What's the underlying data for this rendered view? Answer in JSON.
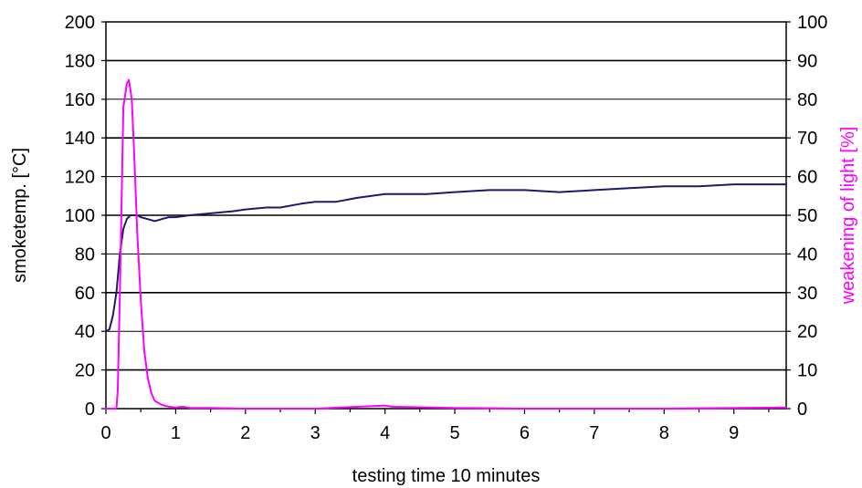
{
  "chart_data": {
    "type": "line",
    "xlabel": "testing time 10 minutes",
    "ylabel": "smoketemp. [°C]",
    "y2label": "weakening of light [%]",
    "xlim": [
      0,
      9.75
    ],
    "ylim": [
      0,
      200
    ],
    "y2lim": [
      0,
      100
    ],
    "x_ticks": [
      "0",
      "1",
      "2",
      "3",
      "4",
      "5",
      "6",
      "7",
      "8",
      "9"
    ],
    "y_ticks": [
      "0",
      "20",
      "40",
      "60",
      "80",
      "100",
      "120",
      "140",
      "160",
      "180",
      "200"
    ],
    "y2_ticks": [
      "0",
      "10",
      "20",
      "30",
      "40",
      "50",
      "60",
      "70",
      "80",
      "90",
      "100"
    ],
    "grid": true,
    "colors": {
      "smoke_temperature": "#1a1a6e",
      "light_weakening": "#ff00ff"
    },
    "series": [
      {
        "axis": "left",
        "x": [
          0,
          0.05,
          0.1,
          0.15,
          0.2,
          0.25,
          0.3,
          0.35,
          0.4,
          0.45,
          0.5,
          0.6,
          0.7,
          0.8,
          0.9,
          1.0,
          1.2,
          1.5,
          1.8,
          2.0,
          2.3,
          2.5,
          2.8,
          3.0,
          3.3,
          3.6,
          4.0,
          4.3,
          4.6,
          5.0,
          5.5,
          6.0,
          6.5,
          7.0,
          7.5,
          8.0,
          8.5,
          9.0,
          9.5,
          9.75
        ],
        "values": [
          40,
          41,
          48,
          60,
          80,
          93,
          98,
          100,
          100,
          100,
          99,
          98,
          97,
          98,
          99,
          99,
          100,
          101,
          102,
          103,
          104,
          104,
          106,
          107,
          107,
          109,
          111,
          111,
          111,
          112,
          113,
          113,
          112,
          113,
          114,
          115,
          115,
          116,
          116,
          116
        ]
      },
      {
        "axis": "right",
        "x": [
          0,
          0.1,
          0.15,
          0.17,
          0.2,
          0.25,
          0.3,
          0.33,
          0.37,
          0.4,
          0.45,
          0.5,
          0.55,
          0.6,
          0.65,
          0.7,
          0.75,
          0.8,
          0.9,
          1.0,
          1.1,
          1.2,
          1.5,
          2.0,
          3.0,
          4.0,
          4.1,
          5.0,
          6.0,
          7.0,
          8.0,
          9.0,
          9.75
        ],
        "values": [
          0,
          0,
          0,
          5,
          30,
          78,
          84,
          85,
          80,
          68,
          45,
          28,
          15,
          8,
          4,
          2,
          1.5,
          1,
          0.5,
          0.3,
          0.5,
          0.2,
          0.2,
          0,
          0,
          0.8,
          0.5,
          0.2,
          0,
          0,
          0,
          0.2,
          0.3
        ]
      }
    ]
  }
}
